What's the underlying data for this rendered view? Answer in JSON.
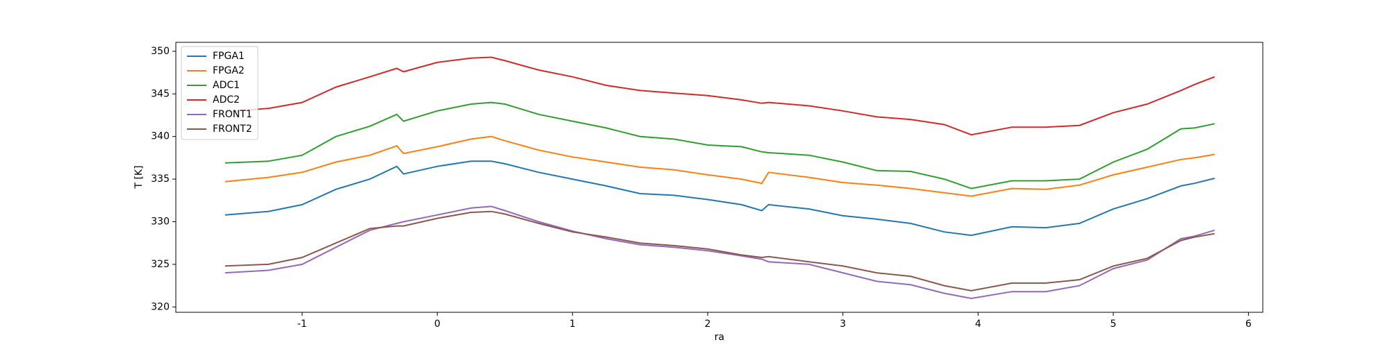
{
  "chart_data": {
    "type": "line",
    "xlabel": "ra",
    "ylabel": "T [K]",
    "x": [
      -1.57,
      -1.25,
      -1.0,
      -0.75,
      -0.5,
      -0.3,
      -0.25,
      0,
      0.25,
      0.4,
      0.5,
      0.75,
      1.0,
      1.25,
      1.5,
      1.75,
      2.0,
      2.25,
      2.4,
      2.45,
      2.75,
      3.0,
      3.25,
      3.5,
      3.75,
      3.95,
      4.25,
      4.5,
      4.75,
      5.0,
      5.25,
      5.5,
      5.6,
      5.75
    ],
    "series": [
      {
        "name": "FPGA1",
        "color": "#1f77b4",
        "values": [
          330.8,
          331.2,
          332,
          333.8,
          335,
          336.5,
          335.6,
          336.5,
          337.1,
          337.1,
          336.8,
          335.8,
          335,
          334.2,
          333.3,
          333.1,
          332.6,
          332,
          331.3,
          332,
          331.5,
          330.7,
          330.3,
          329.8,
          328.8,
          328.4,
          329.4,
          329.3,
          329.8,
          331.5,
          332.7,
          334.2,
          334.5,
          335.1
        ]
      },
      {
        "name": "FPGA2",
        "color": "#ff7f0e",
        "values": [
          334.7,
          335.2,
          335.8,
          337,
          337.8,
          338.9,
          338,
          338.8,
          339.7,
          340,
          339.5,
          338.4,
          337.6,
          337,
          336.4,
          336.1,
          335.5,
          335,
          334.5,
          335.8,
          335.2,
          334.6,
          334.3,
          333.9,
          333.4,
          333,
          333.9,
          333.8,
          334.3,
          335.5,
          336.4,
          337.3,
          337.5,
          337.9
        ]
      },
      {
        "name": "ADC1",
        "color": "#2ca02c",
        "values": [
          336.9,
          337.1,
          337.8,
          340,
          341.2,
          342.6,
          341.8,
          343,
          343.8,
          344,
          343.8,
          342.6,
          341.8,
          341,
          340,
          339.7,
          339,
          338.8,
          338.2,
          338.1,
          337.8,
          337,
          336,
          335.9,
          335,
          333.9,
          334.8,
          334.8,
          335,
          337,
          338.5,
          340.9,
          341,
          341.5
        ]
      },
      {
        "name": "ADC2",
        "color": "#d62728",
        "values": [
          342.9,
          343.3,
          344,
          345.8,
          347,
          348,
          347.6,
          348.7,
          349.2,
          349.3,
          348.9,
          347.8,
          347,
          346,
          345.4,
          345.1,
          344.8,
          344.3,
          343.9,
          344,
          343.6,
          343,
          342.3,
          342,
          341.4,
          340.2,
          341.1,
          341.1,
          341.3,
          342.8,
          343.8,
          345.4,
          346.1,
          347
        ]
      },
      {
        "name": "FRONT1",
        "color": "#9467bd",
        "values": [
          324,
          324.3,
          325,
          327,
          329,
          329.8,
          330,
          330.8,
          331.6,
          331.8,
          331.3,
          330,
          328.9,
          328,
          327.3,
          327,
          326.6,
          326,
          325.6,
          325.3,
          325,
          324,
          323,
          322.6,
          321.6,
          321,
          321.8,
          321.8,
          322.5,
          324.5,
          325.5,
          328,
          328.3,
          329
        ]
      },
      {
        "name": "FRONT2",
        "color": "#8c564b",
        "values": [
          324.8,
          325,
          325.8,
          327.5,
          329.2,
          329.5,
          329.5,
          330.4,
          331.1,
          331.2,
          330.9,
          329.8,
          328.8,
          328.2,
          327.5,
          327.2,
          326.8,
          326.1,
          325.8,
          325.9,
          325.3,
          324.8,
          324,
          323.6,
          322.5,
          321.9,
          322.8,
          322.8,
          323.2,
          324.8,
          325.7,
          327.8,
          328.2,
          328.6
        ]
      }
    ],
    "xlim": [
      -1.934,
      6.106
    ],
    "xticks": [
      -1,
      0,
      1,
      2,
      3,
      4,
      5,
      6
    ],
    "ylim": [
      319.37,
      351.05
    ],
    "yticks": [
      320,
      325,
      330,
      335,
      340,
      345,
      350
    ],
    "legend": "upper left",
    "grid": false
  }
}
